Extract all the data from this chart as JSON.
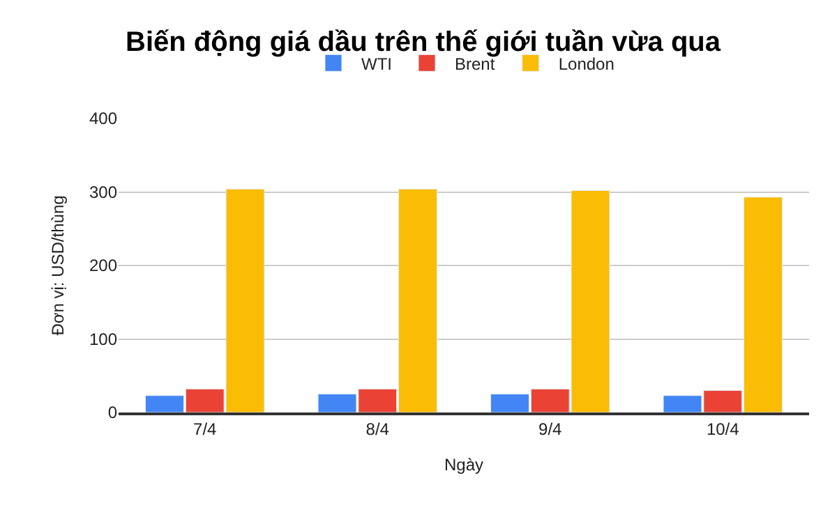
{
  "chart_data": {
    "type": "bar",
    "title": "Biến động giá dầu trên thế giới tuần vừa qua",
    "xlabel": "Ngày",
    "ylabel": "Đơn vị: USD/thùng",
    "categories": [
      "7/4",
      "8/4",
      "9/4",
      "10/4"
    ],
    "series": [
      {
        "name": "WTI",
        "color": "#4285f4",
        "values": [
          23,
          25,
          25,
          23
        ]
      },
      {
        "name": "Brent",
        "color": "#ea4335",
        "values": [
          32,
          32,
          32,
          30
        ]
      },
      {
        "name": "London",
        "color": "#fbbc04",
        "values": [
          304,
          304,
          302,
          293
        ]
      }
    ],
    "ylim": [
      0,
      400
    ],
    "yticks": [
      0,
      100,
      200,
      300,
      400
    ],
    "grid": "y",
    "legend": "top"
  }
}
